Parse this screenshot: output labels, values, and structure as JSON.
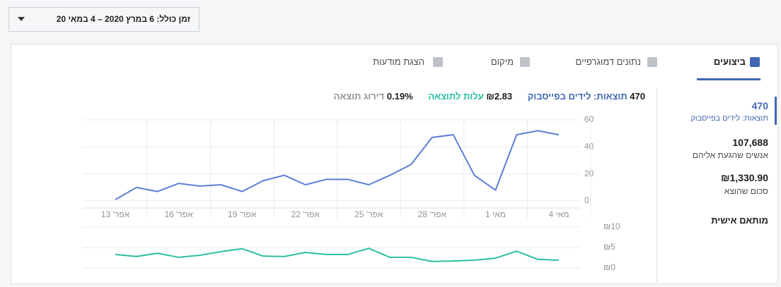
{
  "date_range": "זמן כולל: 6 במרץ 2020 – 4 במאי 20",
  "tabs": [
    "ביצועים",
    "נתונים דמוגרפיים",
    "מיקום",
    "הצגת מודעות"
  ],
  "headline": {
    "results": "470",
    "cost": "₪2.83",
    "rank_value": "0.19%",
    "rank_label": "דירוג תוצאה"
  },
  "sidebar": [
    {
      "value": "470",
      "label": "תוצאות: לידים בפייסבוק"
    },
    {
      "value": "107,688",
      "label": "אנשים שהגעת אליהם"
    },
    {
      "value": "₪1,330.90",
      "label": "סכום שהוצא"
    }
  ],
  "custom": "מותאם אישית",
  "chart_data": [
    {
      "type": "line",
      "categories": [
        "אפר' 13",
        null,
        null,
        "אפר' 16",
        null,
        null,
        "אפר' 19",
        null,
        null,
        "אפר' 22",
        null,
        null,
        "אפר' 25",
        null,
        null,
        "אפר' 28",
        null,
        null,
        "מאי 1",
        null,
        null,
        "מאי 4"
      ],
      "series": [
        {
          "name": "תוצאות: לידים בפייסבוק",
          "color": "#5b7fd6",
          "values": [
            1,
            10,
            7,
            13,
            11,
            12,
            7,
            15,
            19,
            12,
            16,
            16,
            12,
            19,
            27,
            47,
            49,
            19,
            8,
            49,
            52,
            49
          ]
        }
      ],
      "ylim": [
        0,
        60
      ],
      "yticks": [
        0,
        20,
        40,
        60
      ],
      "grid": true
    },
    {
      "type": "line",
      "series": [
        {
          "name": "עלות לתוצאה",
          "color": "#2bbfa0",
          "values": [
            3.3,
            2.8,
            3.6,
            2.6,
            3.1,
            4.0,
            4.7,
            2.9,
            2.8,
            3.8,
            3.3,
            3.3,
            4.8,
            2.6,
            2.6,
            1.6,
            1.7,
            1.9,
            2.4,
            4.1,
            2.1,
            1.9
          ]
        }
      ],
      "ylim": [
        0,
        10
      ],
      "yticks": [
        {
          "value": 0,
          "label": "₪0"
        },
        {
          "value": 5,
          "label": "₪5"
        },
        {
          "value": 10,
          "label": "₪10"
        }
      ],
      "grid": true
    }
  ]
}
